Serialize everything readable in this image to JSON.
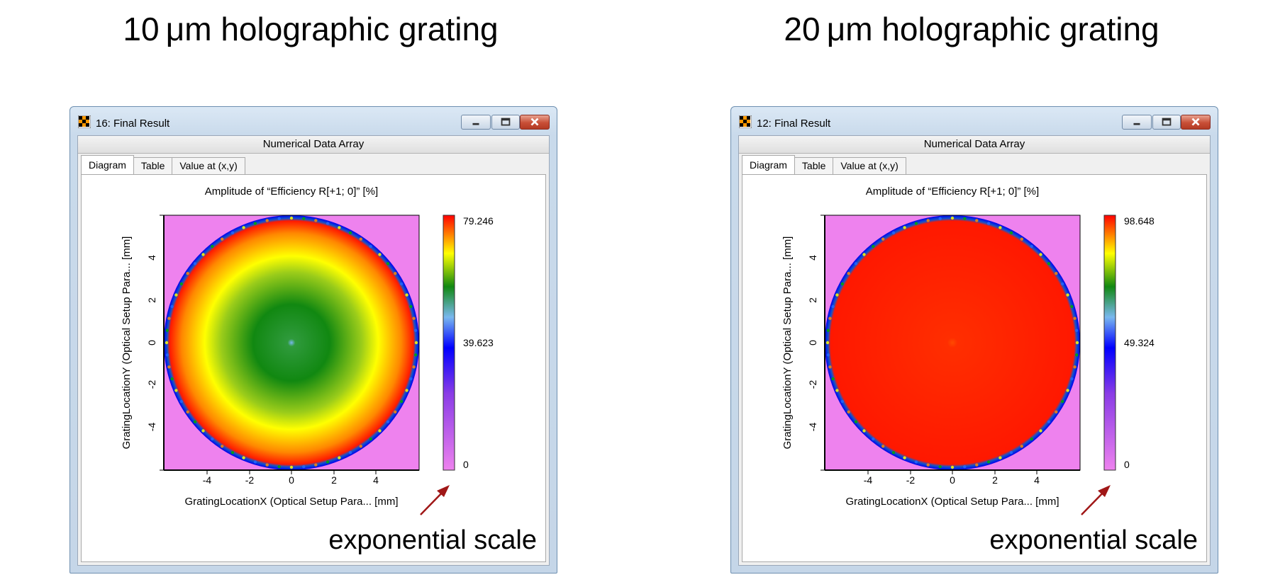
{
  "panels": [
    {
      "heading": "10 μm holographic grating",
      "window_title": "16: Final Result",
      "subheader": "Numerical Data Array",
      "tabs": [
        "Diagram",
        "Table",
        "Value at (x,y)"
      ],
      "active_tab": "Diagram",
      "plot_title": "Amplitude of “Efficiency R[+1; 0]”  [%]",
      "xlabel": "GratingLocationX (Optical Setup Para... [mm]",
      "ylabel": "GratingLocationY (Optical Setup Para... [mm]",
      "x_ticks": [
        "-4",
        "-2",
        "0",
        "2",
        "4"
      ],
      "y_ticks": [
        "4",
        "2",
        "0",
        "-2",
        "-4"
      ],
      "colorbar_labels": [
        "79.246",
        "39.623",
        "0"
      ],
      "annotation": "exponential scale",
      "pattern": "rings"
    },
    {
      "heading": "20 μm holographic grating",
      "window_title": "12: Final Result",
      "subheader": "Numerical Data Array",
      "tabs": [
        "Diagram",
        "Table",
        "Value at (x,y)"
      ],
      "active_tab": "Diagram",
      "plot_title": "Amplitude of “Efficiency R[+1; 0]”  [%]",
      "xlabel": "GratingLocationX (Optical Setup Para... [mm]",
      "ylabel": "GratingLocationY (Optical Setup Para... [mm]",
      "x_ticks": [
        "-4",
        "-2",
        "0",
        "2",
        "4"
      ],
      "y_ticks": [
        "4",
        "2",
        "0",
        "-2",
        "-4"
      ],
      "colorbar_labels": [
        "98.648",
        "49.324",
        "0"
      ],
      "annotation": "exponential scale",
      "pattern": "uniform"
    }
  ],
  "colors": {
    "background_fill": "#ee82ee",
    "colorbar": [
      "#ee82ee",
      "#8a3ce6",
      "#0000ff",
      "#79b8ee",
      "#118811",
      "#ffff00",
      "#ff0000"
    ],
    "arrow": "#a01717"
  },
  "icons": {
    "app": "final-result-app-icon",
    "minimize": "minimize-icon",
    "maximize": "maximize-icon",
    "close": "close-icon"
  }
}
